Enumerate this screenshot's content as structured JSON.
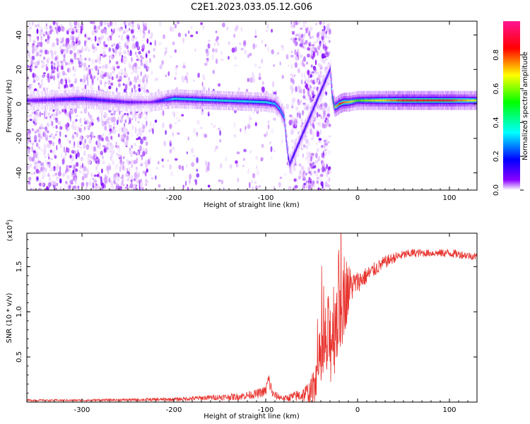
{
  "title": "C2E1.2023.033.05.12.G06",
  "chart_data": [
    {
      "type": "heatmap",
      "xlabel": "Height of straight line (km)",
      "ylabel": "Frequency (Hz)",
      "xlim": [
        -360,
        130
      ],
      "ylim": [
        -50,
        48
      ],
      "xticks": [
        -300,
        -200,
        -100,
        0,
        100
      ],
      "xtick_labels": [
        "-300",
        "-200",
        "-100",
        "0",
        "100"
      ],
      "yticks": [
        -40,
        -20,
        0,
        20,
        40
      ],
      "ytick_labels": [
        "-40",
        "-20",
        "0",
        "20",
        "40"
      ],
      "colorbar": {
        "label": "Normalized spectral amplitude",
        "range": [
          0,
          1
        ],
        "ticks": [
          0.0,
          0.2,
          0.4,
          0.6,
          0.8
        ],
        "tick_labels": [
          "0.0",
          "0.2",
          "0.4",
          "0.6",
          "0.8"
        ],
        "colors": [
          "#ffffff",
          "#8a00ff",
          "#0000ff",
          "#00ffff",
          "#00ff00",
          "#ffff00",
          "#ff0000",
          "#ff1493"
        ]
      },
      "trace": {
        "x": [
          -350,
          -300,
          -250,
          -225,
          -200,
          -150,
          -100,
          -90,
          -85,
          -80,
          -78,
          -76,
          -74,
          -30,
          -28,
          -26,
          -25,
          -22,
          -20,
          -15,
          -10,
          0,
          50,
          100,
          130
        ],
        "y": [
          2,
          3,
          1,
          1,
          3,
          2,
          1,
          0,
          -3,
          -8,
          -20,
          -30,
          -35,
          20,
          5,
          0,
          -2,
          -1,
          0,
          1,
          1,
          2,
          2,
          2,
          2
        ],
        "peak_amplitude": [
          0.2,
          0.3,
          0.2,
          0.15,
          0.45,
          0.45,
          0.45,
          0.4,
          0.4,
          0.4,
          0.35,
          0.35,
          0.3,
          0.3,
          0.5,
          0.6,
          0.7,
          0.8,
          0.85,
          0.8,
          0.75,
          0.6,
          0.85,
          0.85,
          0.7
        ]
      },
      "noise_regions": [
        {
          "x": [
            -360,
            -227
          ],
          "density": 0.8
        },
        {
          "x": [
            -227,
            -100
          ],
          "density": 0.15
        },
        {
          "x": [
            -100,
            -72
          ],
          "density": 0.1
        },
        {
          "x": [
            -72,
            -30
          ],
          "density": 0.9
        }
      ]
    },
    {
      "type": "line",
      "xlabel": "Height of straight line (km)",
      "ylabel": "SNR (10 * v/v)",
      "scale_note": "(x10",
      "scale_exp": "4",
      "scale_close": ")",
      "xlim": [
        -360,
        130
      ],
      "ylim": [
        0,
        1.87
      ],
      "xticks": [
        -300,
        -200,
        -100,
        0,
        100
      ],
      "xtick_labels": [
        "-300",
        "-200",
        "-100",
        "0",
        "100"
      ],
      "yticks": [
        0.5,
        1.0,
        1.5
      ],
      "ytick_labels": [
        "0.5",
        "1.0",
        "1.5"
      ],
      "series": [
        {
          "color": "#e8332e",
          "x": [
            -360,
            -300,
            -200,
            -160,
            -130,
            -110,
            -100,
            -97,
            -92,
            -80,
            -60,
            -50,
            -45,
            -40,
            -35,
            -30,
            -25,
            -22,
            -20,
            -18,
            -15,
            -10,
            -5,
            0,
            10,
            20,
            30,
            40,
            50,
            60,
            80,
            100,
            130
          ],
          "y": [
            0.02,
            0.02,
            0.03,
            0.05,
            0.06,
            0.09,
            0.12,
            0.25,
            0.08,
            0.04,
            0.08,
            0.12,
            0.3,
            0.45,
            0.6,
            0.7,
            0.9,
            1.0,
            1.1,
            1.2,
            1.2,
            1.25,
            1.3,
            1.33,
            1.4,
            1.48,
            1.55,
            1.6,
            1.63,
            1.65,
            1.65,
            1.65,
            1.61
          ],
          "noise_amplitude": [
            0.01,
            0.01,
            0.02,
            0.03,
            0.04,
            0.05,
            0.06,
            0.1,
            0.05,
            0.03,
            0.08,
            0.15,
            0.3,
            0.4,
            0.5,
            0.55,
            0.6,
            0.6,
            0.65,
            0.65,
            0.5,
            0.3,
            0.15,
            0.12,
            0.1,
            0.08,
            0.07,
            0.06,
            0.05,
            0.05,
            0.04,
            0.05,
            0.04
          ]
        }
      ]
    }
  ]
}
